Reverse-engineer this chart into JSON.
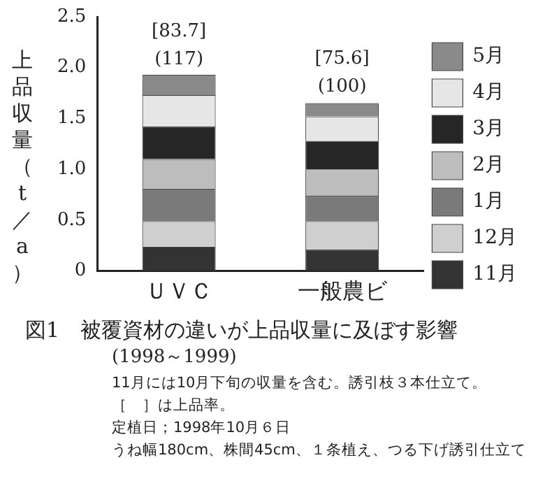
{
  "chart_data": {
    "type": "bar",
    "stacked": true,
    "title": "図1　被覆資材の違いが上品収量に及ぼす影響",
    "subtitle": "(1998～1999)",
    "ylabel": "上品収量（t／a）",
    "categories": [
      "ＵＶＣ",
      "一般農ビ"
    ],
    "series": [
      {
        "name": "11月",
        "color": "#333333",
        "values": [
          0.24,
          0.21
        ]
      },
      {
        "name": "12月",
        "color": "#cfcfcf",
        "values": [
          0.25,
          0.28
        ]
      },
      {
        "name": "1月",
        "color": "#7a7a7a",
        "values": [
          0.32,
          0.25
        ]
      },
      {
        "name": "2月",
        "color": "#bdbdbd",
        "values": [
          0.29,
          0.26
        ]
      },
      {
        "name": "3月",
        "color": "#262626",
        "values": [
          0.32,
          0.28
        ]
      },
      {
        "name": "4月",
        "color": "#e6e6e6",
        "values": [
          0.31,
          0.24
        ]
      },
      {
        "name": "5月",
        "color": "#8a8a8a",
        "values": [
          0.2,
          0.13
        ]
      }
    ],
    "ylim": [
      0,
      2.5
    ],
    "yticks": [
      0,
      {
        "value": 0.5,
        "label": "0.5"
      },
      {
        "value": 1,
        "label": "1.0"
      },
      {
        "value": 1.5,
        "label": "1.5"
      },
      {
        "value": 2,
        "label": "2.0"
      },
      {
        "value": 2.5,
        "label": "2.5"
      }
    ],
    "legend": "right",
    "annotations": [
      {
        "text": "[83.7]",
        "x": "ＵＶＣ",
        "y": 1.92
      },
      {
        "text": "(117)",
        "x": "ＵＶＣ",
        "y": 1.92
      },
      {
        "text": "[75.6]",
        "x": "一般農ビ",
        "y": 1.65
      },
      {
        "text": "(100)",
        "x": "一般農ビ",
        "y": 1.65
      },
      "11月には10月下旬の収量を含む。誘引枝３本仕立て。",
      "［　］は上品率。",
      "定植日；1998年10月６日",
      "うね幅180cm、株間45cm、１条植え、つる下げ誘引仕立て"
    ]
  }
}
